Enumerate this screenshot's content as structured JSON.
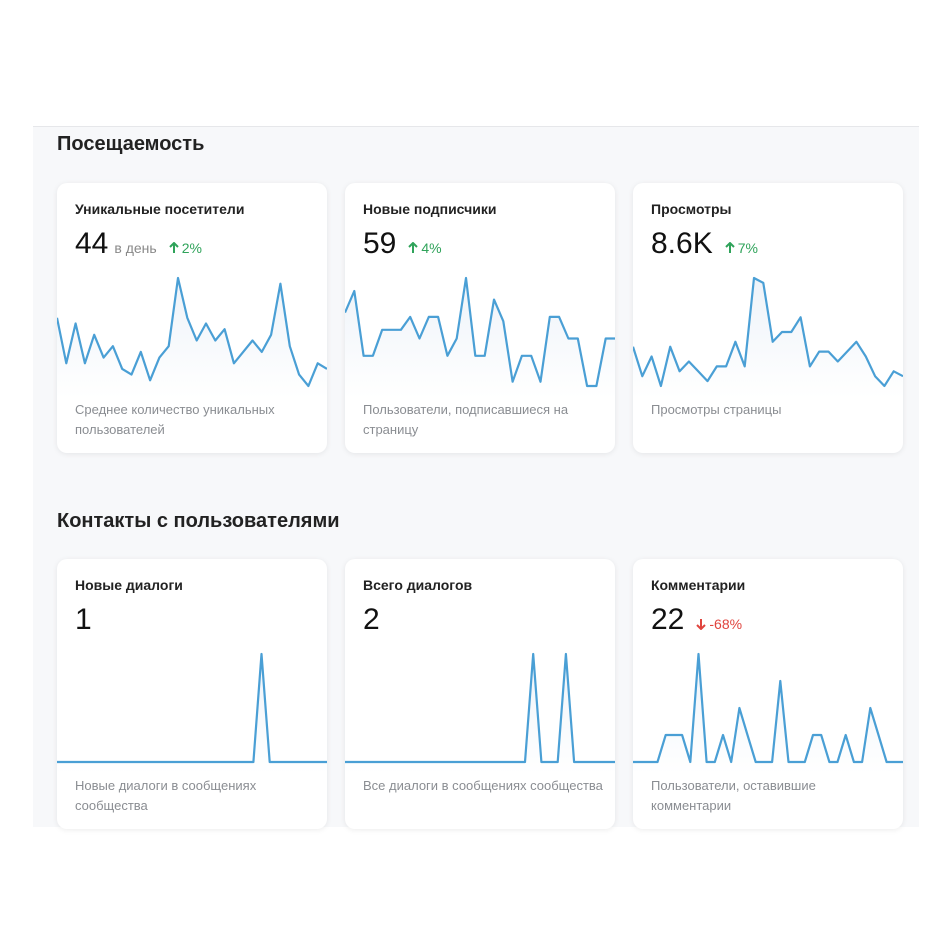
{
  "sections": [
    {
      "title": "Посещаемость",
      "cards": [
        {
          "title": "Уникальные посетители",
          "value": "44",
          "unit": "в день",
          "delta": "2%",
          "trend": "up",
          "description": "Среднее количество уникальных пользователей",
          "series": [
            48,
            40,
            47,
            40,
            45,
            41,
            43,
            39,
            38,
            42,
            37,
            41,
            43,
            55,
            48,
            44,
            47,
            44,
            46,
            40,
            42,
            44,
            42,
            45,
            54,
            43,
            38,
            36,
            40,
            39
          ]
        },
        {
          "title": "Новые подписчики",
          "value": "59",
          "unit": "",
          "delta": "4%",
          "trend": "up",
          "description": "Пользователи, подписавшиеся на страницу",
          "series": [
            48,
            53,
            38,
            38,
            44,
            44,
            44,
            47,
            42,
            47,
            47,
            38,
            42,
            56,
            38,
            38,
            51,
            46,
            32,
            38,
            38,
            32,
            47,
            47,
            42,
            42,
            31,
            31,
            42,
            42
          ]
        },
        {
          "title": "Просмотры",
          "value": "8.6K",
          "unit": "",
          "delta": "7%",
          "trend": "up",
          "description": "Просмотры страницы",
          "series": [
            44,
            38,
            42,
            36,
            44,
            39,
            41,
            39,
            37,
            40,
            40,
            45,
            40,
            58,
            57,
            45,
            47,
            47,
            50,
            40,
            43,
            43,
            41,
            43,
            45,
            42,
            38,
            36,
            39,
            38
          ]
        }
      ]
    },
    {
      "title": "Контакты с пользователями",
      "cards": [
        {
          "title": "Новые диалоги",
          "value": "1",
          "unit": "",
          "delta": "",
          "trend": "",
          "description": "Новые диалоги в сообщениях сообщества",
          "series": [
            0,
            0,
            0,
            0,
            0,
            0,
            0,
            0,
            0,
            0,
            0,
            0,
            0,
            0,
            0,
            0,
            0,
            0,
            0,
            0,
            0,
            0,
            0,
            0,
            0,
            1,
            0,
            0,
            0,
            0,
            0,
            0,
            0,
            0
          ]
        },
        {
          "title": "Всего диалогов",
          "value": "2",
          "unit": "",
          "delta": "",
          "trend": "",
          "description": "Все диалоги в сообщениях сообщества",
          "series": [
            0,
            0,
            0,
            0,
            0,
            0,
            0,
            0,
            0,
            0,
            0,
            0,
            0,
            0,
            0,
            0,
            0,
            0,
            0,
            0,
            0,
            0,
            0,
            1,
            0,
            0,
            0,
            1,
            0,
            0,
            0,
            0,
            0,
            0
          ]
        },
        {
          "title": "Комментарии",
          "value": "22",
          "unit": "",
          "delta": "-68%",
          "trend": "down",
          "description": "Пользователи, оставившие комментарии",
          "series": [
            0,
            0,
            0,
            0,
            1,
            1,
            1,
            0,
            4,
            0,
            0,
            1,
            0,
            2,
            1,
            0,
            0,
            0,
            3,
            0,
            0,
            0,
            1,
            1,
            0,
            0,
            1,
            0,
            0,
            2,
            1,
            0,
            0,
            0
          ]
        }
      ]
    }
  ],
  "colors": {
    "line": "#4a9fd5",
    "fill_top": "#eef3f9",
    "up": "#2fa35a",
    "down": "#e0443e"
  }
}
